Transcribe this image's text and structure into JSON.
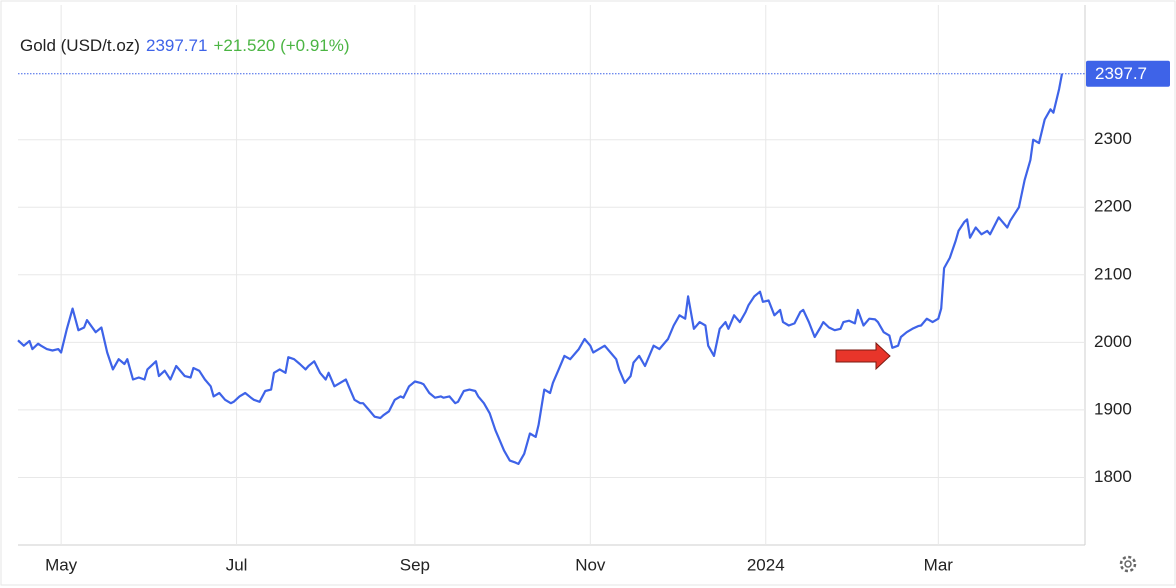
{
  "chart_data": {
    "type": "line",
    "title": "Gold (USD/t.oz)",
    "price": "2397.71",
    "change": "+21.520 (+0.91%)",
    "last_label": "2397.7",
    "x": [
      -15,
      -13,
      -11,
      -10,
      -8,
      -7,
      -5,
      -3,
      -1,
      0,
      2,
      4,
      6,
      8,
      9,
      12,
      14,
      16,
      18,
      20,
      22,
      23,
      25,
      27,
      29,
      30,
      33,
      34,
      36,
      38,
      40,
      41,
      43,
      45,
      46,
      48,
      50,
      52,
      53,
      55,
      57,
      59,
      60,
      62,
      64,
      66,
      67,
      69,
      71,
      73,
      74,
      76,
      78,
      79,
      81,
      83,
      85,
      86,
      88,
      90,
      92,
      93,
      95,
      97,
      99,
      100,
      102,
      104,
      105,
      107,
      109,
      111,
      112,
      114,
      116,
      118,
      119,
      121,
      123,
      125,
      126,
      128,
      130,
      132,
      133,
      135,
      137,
      138,
      140,
      142,
      144,
      145,
      147,
      149,
      151,
      152,
      154,
      156,
      158,
      159,
      161,
      163,
      165,
      166,
      168,
      170,
      171,
      173,
      175,
      177,
      179,
      180,
      182,
      184,
      185,
      187,
      189,
      191,
      193,
      194,
      196,
      198,
      199,
      201,
      203,
      205,
      206,
      208,
      210,
      211,
      213,
      215,
      217,
      218,
      220,
      222,
      224,
      225,
      227,
      229,
      231,
      232,
      234,
      236,
      238,
      239,
      241,
      243,
      244,
      246,
      248,
      250,
      251,
      253,
      255,
      257,
      258,
      260,
      262,
      264,
      265,
      267,
      269,
      271,
      272,
      274,
      276,
      277,
      279,
      281,
      283,
      284,
      286,
      288,
      289,
      291,
      292,
      294,
      296,
      298,
      299,
      301,
      303,
      305,
      306,
      307,
      309,
      311,
      312,
      314,
      315,
      316,
      318,
      320,
      322,
      323,
      326,
      327,
      329,
      330,
      333,
      335,
      337,
      338,
      340,
      342,
      344,
      345,
      347,
      348
    ],
    "series": [
      {
        "name": "Gold",
        "color": "#3e63e8",
        "values": [
          2003,
          1995,
          2002,
          1990,
          1998,
          1995,
          1990,
          1988,
          1990,
          1985,
          2020,
          2050,
          2018,
          2022,
          2033,
          2015,
          2022,
          1985,
          1960,
          1975,
          1968,
          1975,
          1945,
          1948,
          1945,
          1960,
          1972,
          1950,
          1958,
          1945,
          1965,
          1960,
          1950,
          1948,
          1962,
          1958,
          1945,
          1935,
          1920,
          1925,
          1915,
          1910,
          1912,
          1920,
          1925,
          1918,
          1915,
          1912,
          1928,
          1930,
          1955,
          1960,
          1955,
          1978,
          1975,
          1968,
          1960,
          1965,
          1972,
          1955,
          1945,
          1955,
          1935,
          1940,
          1945,
          1935,
          1915,
          1910,
          1910,
          1900,
          1890,
          1888,
          1892,
          1898,
          1915,
          1920,
          1918,
          1935,
          1942,
          1940,
          1938,
          1925,
          1918,
          1920,
          1918,
          1920,
          1910,
          1912,
          1928,
          1930,
          1928,
          1920,
          1910,
          1895,
          1870,
          1860,
          1840,
          1825,
          1822,
          1820,
          1835,
          1865,
          1860,
          1878,
          1930,
          1925,
          1940,
          1960,
          1980,
          1975,
          1985,
          1990,
          2005,
          1995,
          1985,
          1990,
          1995,
          1985,
          1975,
          1960,
          1940,
          1950,
          1970,
          1980,
          1965,
          1985,
          1995,
          1990,
          2000,
          2005,
          2025,
          2040,
          2035,
          2068,
          2020,
          2030,
          2025,
          1995,
          1980,
          2020,
          2030,
          2020,
          2040,
          2030,
          2045,
          2055,
          2068,
          2075,
          2060,
          2062,
          2040,
          2048,
          2030,
          2025,
          2028,
          2045,
          2048,
          2030,
          2008,
          2022,
          2030,
          2022,
          2018,
          2020,
          2030,
          2032,
          2028,
          2048,
          2025,
          2035,
          2034,
          2030,
          2015,
          2010,
          1992,
          1995,
          2008,
          2015,
          2020,
          2024,
          2025,
          2035,
          2030,
          2035,
          2050,
          2110,
          2125,
          2150,
          2165,
          2178,
          2182,
          2155,
          2170,
          2160,
          2165,
          2160,
          2185,
          2180,
          2170,
          2180,
          2200,
          2240,
          2270,
          2300,
          2295,
          2330,
          2345,
          2340,
          2375,
          2397.71
        ]
      }
    ],
    "xlim": [
      -15,
      356
    ],
    "ylim": [
      1700,
      2495
    ],
    "xticks": [
      {
        "value": 0,
        "label": "May"
      },
      {
        "value": 61,
        "label": "Jul"
      },
      {
        "value": 123,
        "label": "Sep"
      },
      {
        "value": 184,
        "label": "Nov"
      },
      {
        "value": 245,
        "label": "2024"
      },
      {
        "value": 305,
        "label": "Mar"
      }
    ],
    "yticks": [
      1800,
      1900,
      2000,
      2100,
      2200,
      2300
    ],
    "grid": true
  }
}
